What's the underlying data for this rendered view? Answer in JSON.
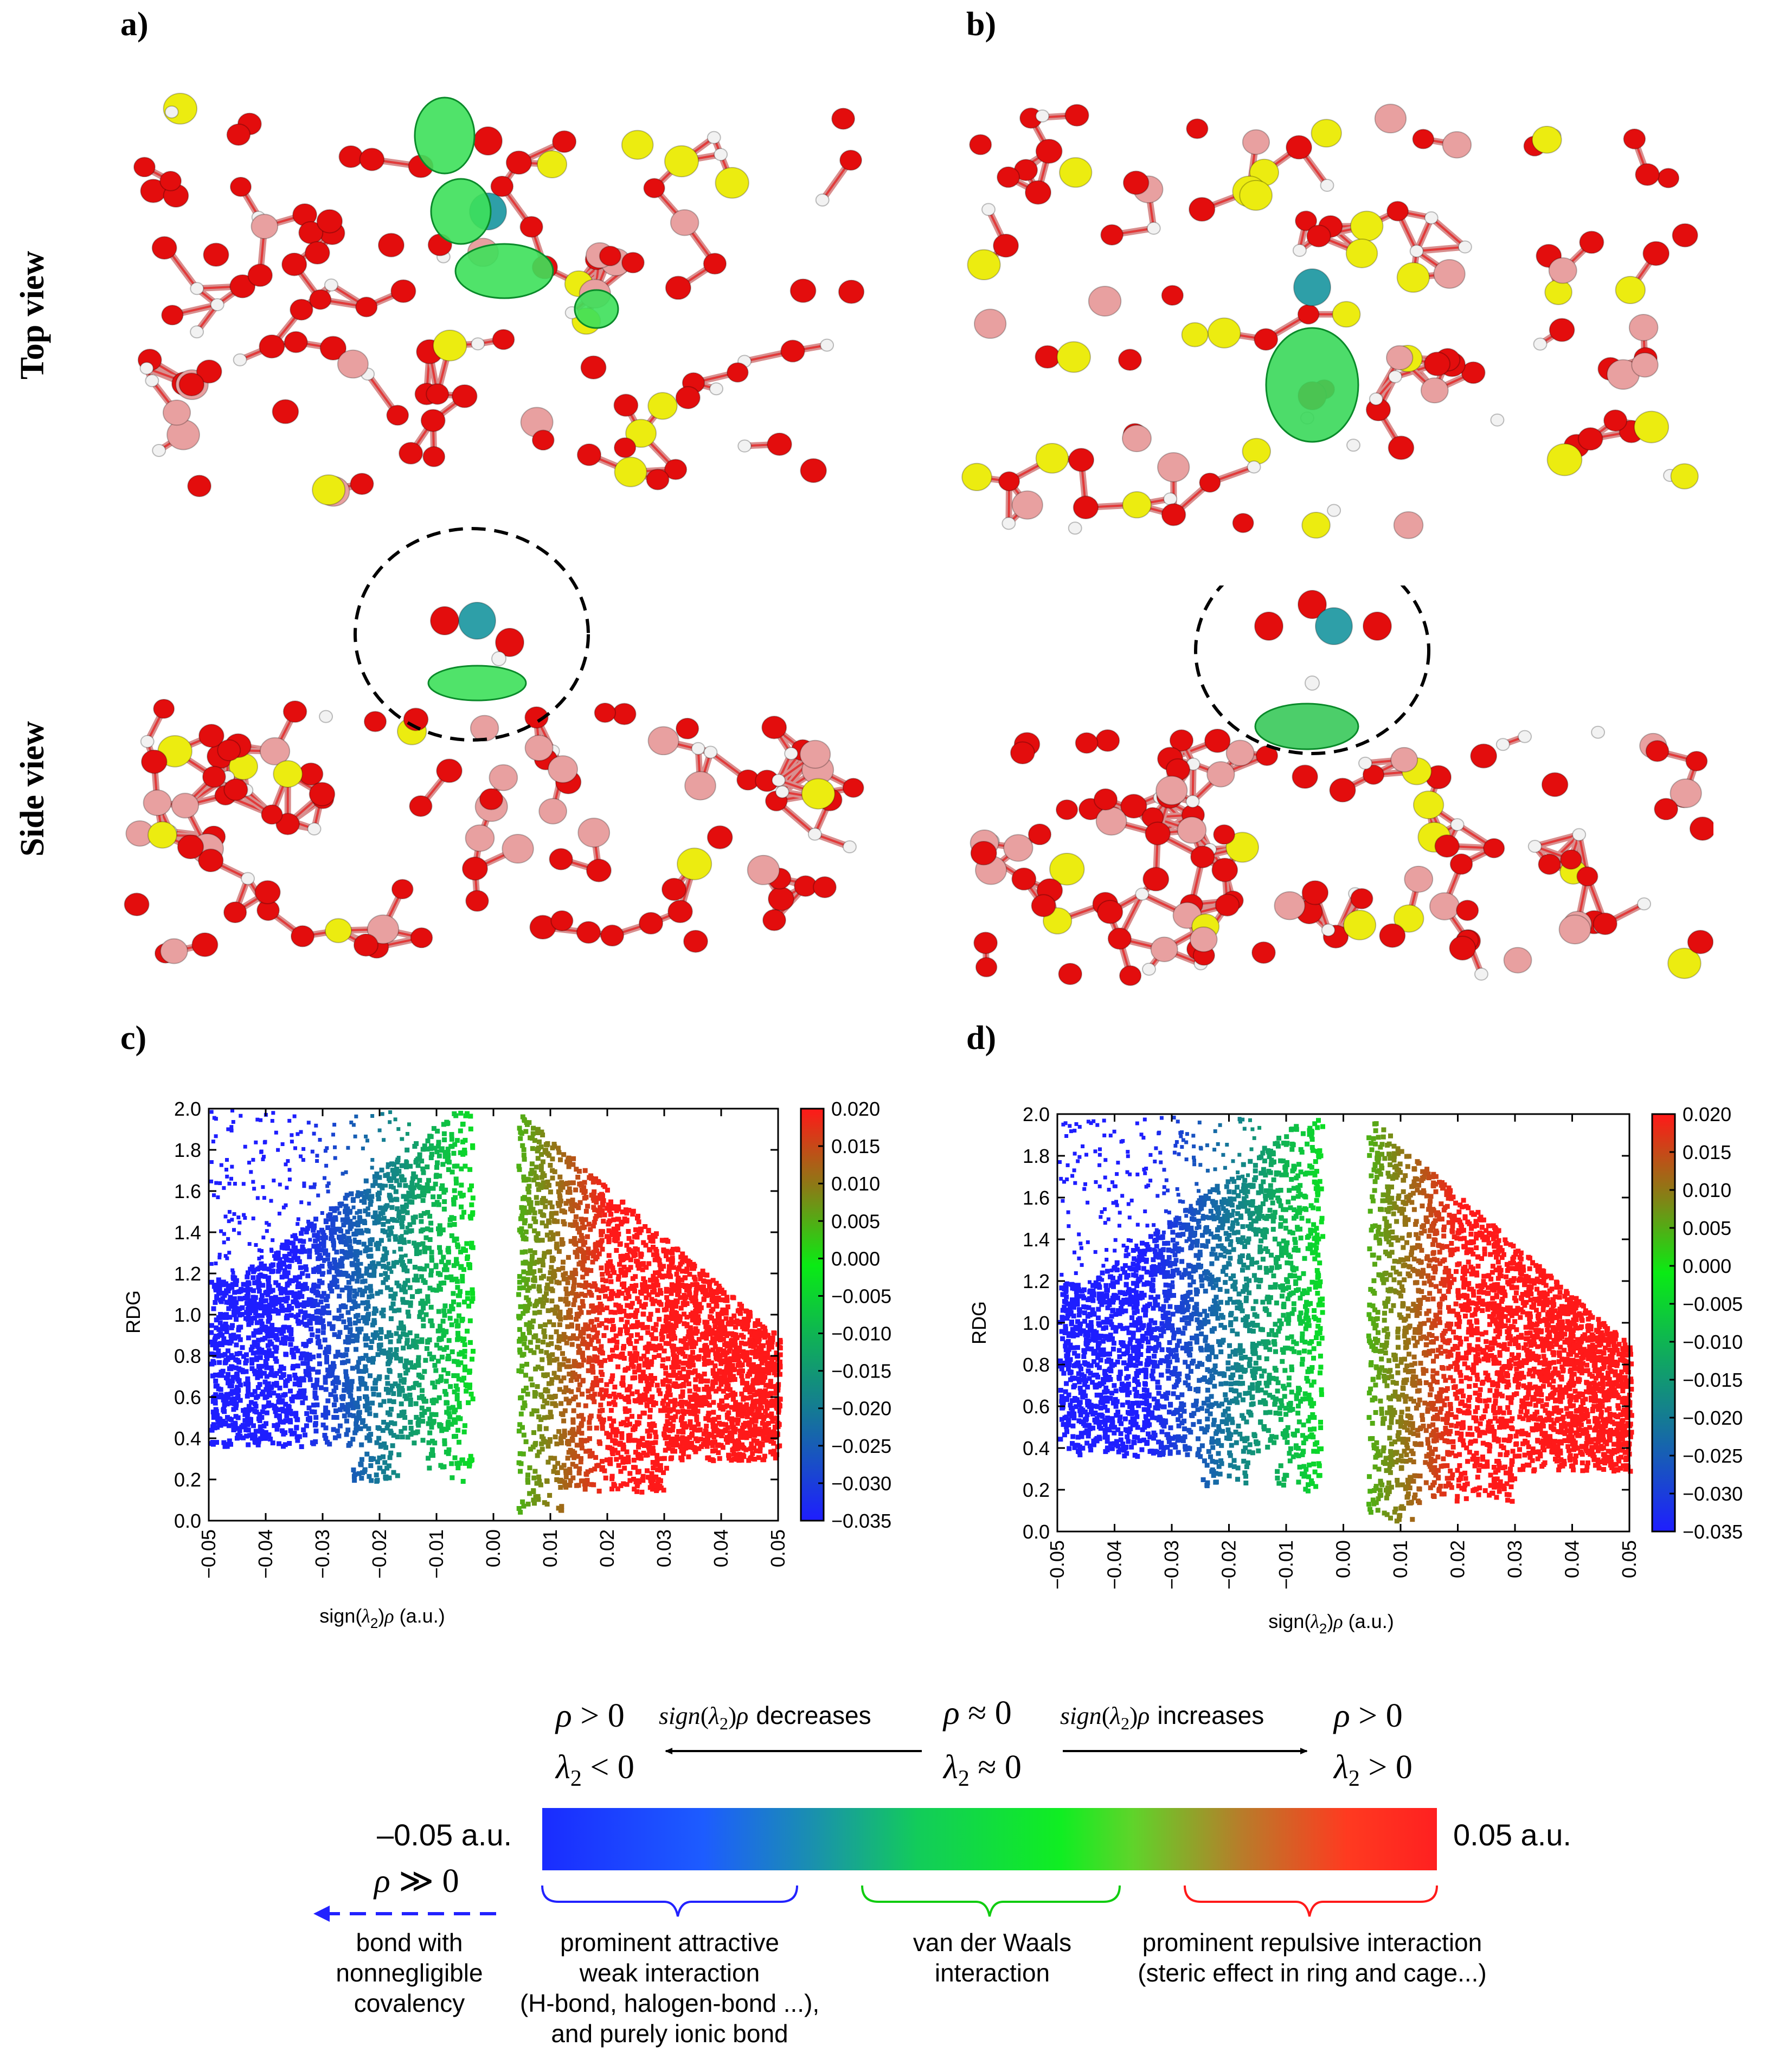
{
  "panels": {
    "a": "a)",
    "b": "b)",
    "c": "c)",
    "d": "d)"
  },
  "views": {
    "top": "Top view",
    "side": "Side view"
  },
  "chart_data": [
    {
      "id": "c",
      "type": "scatter",
      "title": "",
      "xlabel": "sign(λ2)ρ (a.u.)",
      "ylabel": "RDG",
      "xlim": [
        -0.05,
        0.05
      ],
      "ylim": [
        0.0,
        2.0
      ],
      "xticks": [
        "-0.05",
        "-0.04",
        "-0.03",
        "-0.02",
        "-0.01",
        "0.00",
        "0.01",
        "0.02",
        "0.03",
        "0.04",
        "0.05"
      ],
      "yticks": [
        "0.0",
        "0.2",
        "0.4",
        "0.6",
        "0.8",
        "1.0",
        "1.2",
        "1.4",
        "1.6",
        "1.8",
        "2.0"
      ],
      "colorbar": {
        "range": [
          -0.035,
          0.02
        ],
        "ticks": [
          "0.020",
          "0.015",
          "0.010",
          "0.005",
          "0.000",
          "-0.005",
          "-0.010",
          "-0.015",
          "-0.020",
          "-0.025",
          "-0.030",
          "-0.035"
        ]
      },
      "colors": {
        "low": "#1a1aff",
        "mid": "#00ee00",
        "high": "#ff1a1a"
      }
    },
    {
      "id": "d",
      "type": "scatter",
      "title": "",
      "xlabel": "sign(λ2)ρ (a.u.)",
      "ylabel": "RDG",
      "xlim": [
        -0.05,
        0.05
      ],
      "ylim": [
        0.0,
        2.0
      ],
      "xticks": [
        "-0.05",
        "-0.04",
        "-0.03",
        "-0.02",
        "-0.01",
        "0.00",
        "0.01",
        "0.02",
        "0.03",
        "0.04",
        "0.05"
      ],
      "yticks": [
        "0.0",
        "0.2",
        "0.4",
        "0.6",
        "0.8",
        "1.0",
        "1.2",
        "1.4",
        "1.6",
        "1.8",
        "2.0"
      ],
      "colorbar": {
        "range": [
          -0.035,
          0.02
        ],
        "ticks": [
          "0.020",
          "0.015",
          "0.010",
          "0.005",
          "0.000",
          "-0.005",
          "-0.010",
          "-0.015",
          "-0.020",
          "-0.025",
          "-0.030",
          "-0.035"
        ]
      },
      "colors": {
        "low": "#1a1aff",
        "mid": "#00ee00",
        "high": "#ff1a1a"
      }
    }
  ],
  "legend": {
    "left_rho": "ρ > 0",
    "left_lambda": "λ2 < 0",
    "decreases": "decreases",
    "increases": "increases",
    "sign_expr": "sign(λ2)ρ",
    "mid_rho": "ρ ≈ 0",
    "mid_lambda": "λ2 ≈ 0",
    "right_rho": "ρ > 0",
    "right_lambda": "λ2 > 0",
    "bar_min": "–0.05 a.u.",
    "bar_max": "0.05 a.u.",
    "rho_much": "ρ ≫ 0",
    "covalent": "bond with\nnonnegligible\ncovalency",
    "attractive": "prominent attractive\nweak interaction\n(H-bond, halogen-bond ...),\nand purely ionic bond",
    "vdw": "van der Waals\ninteraction",
    "repulsive": "prominent repulsive interaction\n(steric effect in ring and cage...)",
    "colors": {
      "blue": "#1a2cff",
      "green": "#00dd22",
      "red": "#ff2020"
    }
  }
}
